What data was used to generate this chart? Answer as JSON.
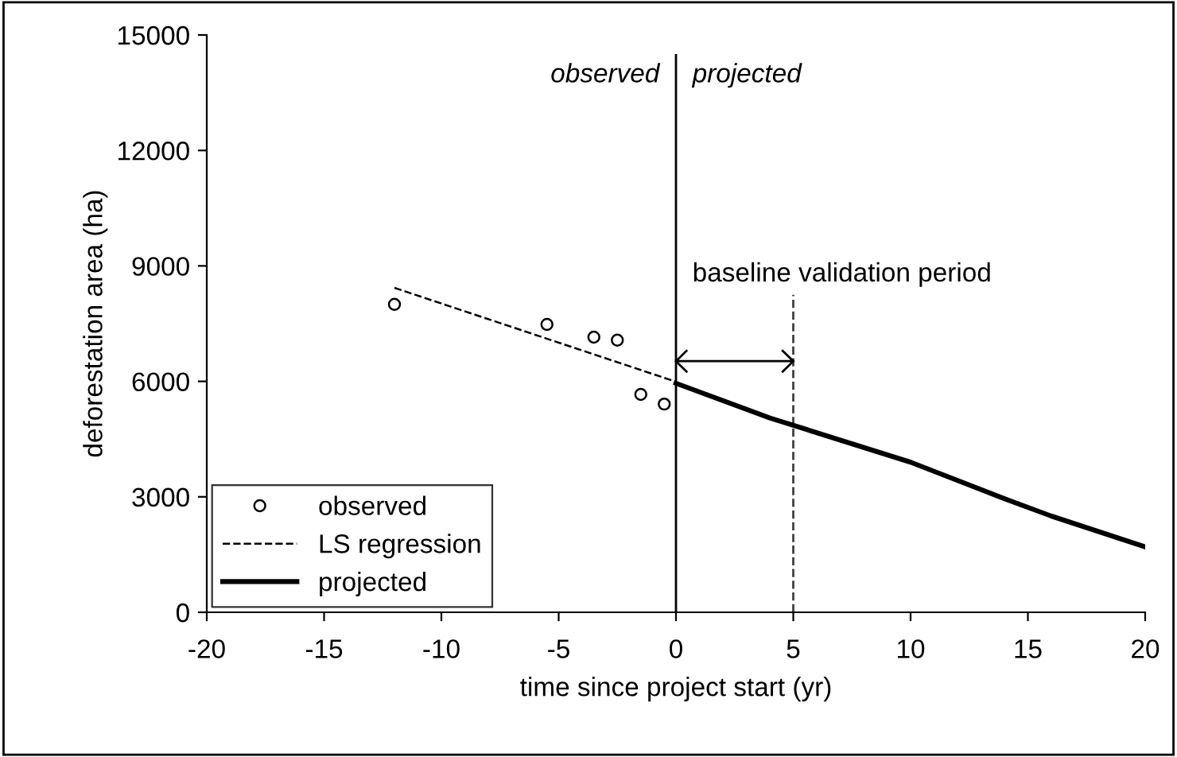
{
  "chart_data": {
    "type": "scatter",
    "xlabel": "time since project start (yr)",
    "ylabel": "deforestation area (ha)",
    "xlim": [
      -20,
      20
    ],
    "xticks": [
      -20,
      -15,
      -10,
      -5,
      0,
      5,
      10,
      15,
      20
    ],
    "ylim": [
      0,
      15000
    ],
    "yticks": [
      0,
      3000,
      6000,
      9000,
      12000,
      15000
    ],
    "grid": false,
    "legend": "bottom left",
    "series": [
      {
        "name": "observed",
        "marker": "circle",
        "color": "#000000",
        "x": [
          -12,
          -5.5,
          -3.5,
          -2.5,
          -1.5,
          -0.5
        ],
        "values": [
          8000,
          7480,
          7150,
          7070,
          5660,
          5410
        ]
      },
      {
        "name": "LS regression",
        "type": "line",
        "line_style": "dashed",
        "color": "#000000",
        "x": [
          -12,
          0
        ],
        "values": [
          8430,
          5990
        ]
      },
      {
        "name": "projected",
        "type": "line",
        "line_style": "solid",
        "color": "#000000",
        "x": [
          0,
          4,
          10,
          14,
          16,
          20
        ],
        "values": [
          5950,
          5050,
          3900,
          2950,
          2500,
          1700
        ]
      }
    ],
    "ref_lines": [
      {
        "axis": "x",
        "value": 0,
        "line_style": "solid",
        "color": "#000000"
      },
      {
        "axis": "x",
        "value": 5,
        "line_style": "dashed",
        "color": "#404040"
      }
    ],
    "annotations": [
      "observed",
      "projected",
      "baseline validation period"
    ]
  }
}
